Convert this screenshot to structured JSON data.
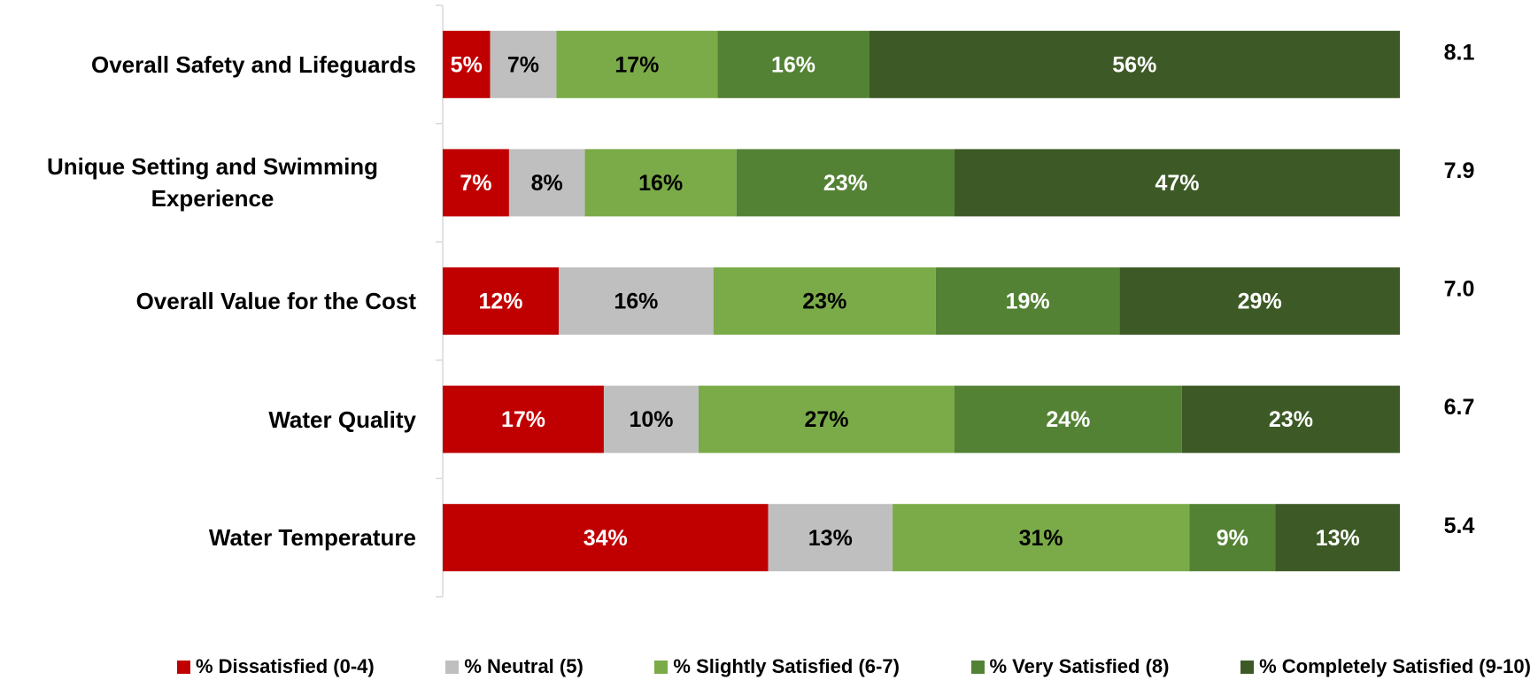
{
  "chart_data": {
    "type": "stacked_bar_horizontal",
    "categories": [
      "Overall Safety and Lifeguards",
      "Unique Setting and Swimming Experience",
      "Overall Value for the Cost",
      "Water Quality",
      "Water Temperature"
    ],
    "series": [
      {
        "name": "% Dissatisfied (0-4)",
        "color": "#c00000",
        "text_color": "#ffffff",
        "values": [
          5,
          7,
          12,
          17,
          34
        ],
        "value_labels": [
          "5%",
          "7%",
          "12%",
          "17%",
          "34%"
        ]
      },
      {
        "name": "% Neutral (5)",
        "color": "#bfbfbf",
        "text_color": "#000000",
        "values": [
          7,
          8,
          16,
          10,
          13
        ],
        "value_labels": [
          "7%",
          "8%",
          "16%",
          "10%",
          "13%"
        ]
      },
      {
        "name": "% Slightly Satisfied (6-7)",
        "color": "#7aab48",
        "text_color": "#000000",
        "values": [
          17,
          16,
          23,
          27,
          31
        ],
        "value_labels": [
          "17%",
          "16%",
          "23%",
          "27%",
          "31%"
        ]
      },
      {
        "name": "% Very Satisfied (8)",
        "color": "#548235",
        "text_color": "#ffffff",
        "values": [
          16,
          23,
          19,
          24,
          9
        ],
        "value_labels": [
          "16%",
          "23%",
          "19%",
          "24%",
          "9%"
        ]
      },
      {
        "name": "% Completely Satisfied (9-10)",
        "color": "#3d5a26",
        "text_color": "#ffffff",
        "values": [
          56,
          47,
          29,
          23,
          13
        ],
        "value_labels": [
          "56%",
          "47%",
          "29%",
          "23%",
          "13%"
        ]
      }
    ],
    "scores": {
      "values": [
        8.1,
        7.9,
        7,
        6.7,
        5.4
      ],
      "value_labels": [
        "8.1",
        "7.9",
        "7.0",
        "6.7",
        "5.4"
      ]
    },
    "legend": "bottom"
  }
}
